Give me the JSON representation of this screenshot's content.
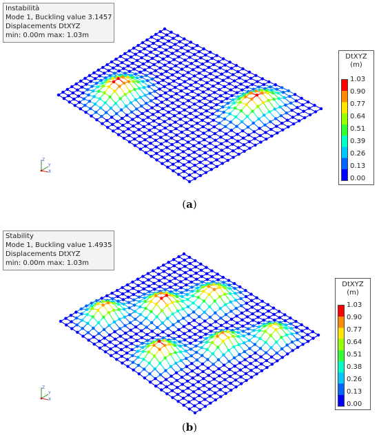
{
  "panels": [
    {
      "id": "a",
      "info": [
        "Instabilità",
        "Mode 1, Buckling value 3.1457",
        "Displacements DtXYZ",
        "min:  0.00m max:  1.03m"
      ],
      "legend_title": "DtXYZ",
      "legend_unit": "(m)",
      "ticks": [
        "1.03",
        "0.90",
        "0.77",
        "0.64",
        "0.51",
        "0.39",
        "0.26",
        "0.13",
        "0.00"
      ],
      "caption_open": "(",
      "caption_letter": "a",
      "caption_close": ")",
      "axis_labels": [
        "Z",
        "Y",
        "X"
      ],
      "bumps": [
        {
          "u": 0.78,
          "v": 0.25,
          "amp": 1.0,
          "su": 0.09,
          "sv": 0.16
        },
        {
          "u": 0.22,
          "v": 0.72,
          "amp": 1.0,
          "su": 0.1,
          "sv": 0.16
        }
      ]
    },
    {
      "id": "b",
      "info": [
        "Stability",
        "Mode 1, Buckling value 1.4935",
        "Displacements DtXYZ",
        "min:  0.00m max:  1.03m"
      ],
      "legend_title": "DtXYZ",
      "legend_unit": "(m)",
      "ticks": [
        "1.03",
        "0.90",
        "0.77",
        "0.64",
        "0.51",
        "0.38",
        "0.26",
        "0.13",
        "0.00"
      ],
      "caption_open": "(",
      "caption_letter": "b",
      "caption_close": ")",
      "axis_labels": [
        "Z",
        "Y",
        "X"
      ],
      "bumps": [
        {
          "u": 0.85,
          "v": 0.2,
          "amp": 0.8,
          "su": 0.09,
          "sv": 0.1
        },
        {
          "u": 0.72,
          "v": 0.47,
          "amp": 0.9,
          "su": 0.08,
          "sv": 0.12
        },
        {
          "u": 0.56,
          "v": 0.8,
          "amp": 1.0,
          "su": 0.09,
          "sv": 0.12
        },
        {
          "u": 0.4,
          "v": 0.2,
          "amp": 0.9,
          "su": 0.1,
          "sv": 0.12
        },
        {
          "u": 0.28,
          "v": 0.48,
          "amp": 1.0,
          "su": 0.1,
          "sv": 0.12
        },
        {
          "u": 0.12,
          "v": 0.78,
          "amp": 0.9,
          "su": 0.08,
          "sv": 0.12
        }
      ]
    }
  ],
  "colormap": [
    "#0000ff",
    "#0064ff",
    "#00c8ff",
    "#00ffc8",
    "#32ff32",
    "#96ff00",
    "#ffe600",
    "#ff8c00",
    "#ff0000"
  ]
}
